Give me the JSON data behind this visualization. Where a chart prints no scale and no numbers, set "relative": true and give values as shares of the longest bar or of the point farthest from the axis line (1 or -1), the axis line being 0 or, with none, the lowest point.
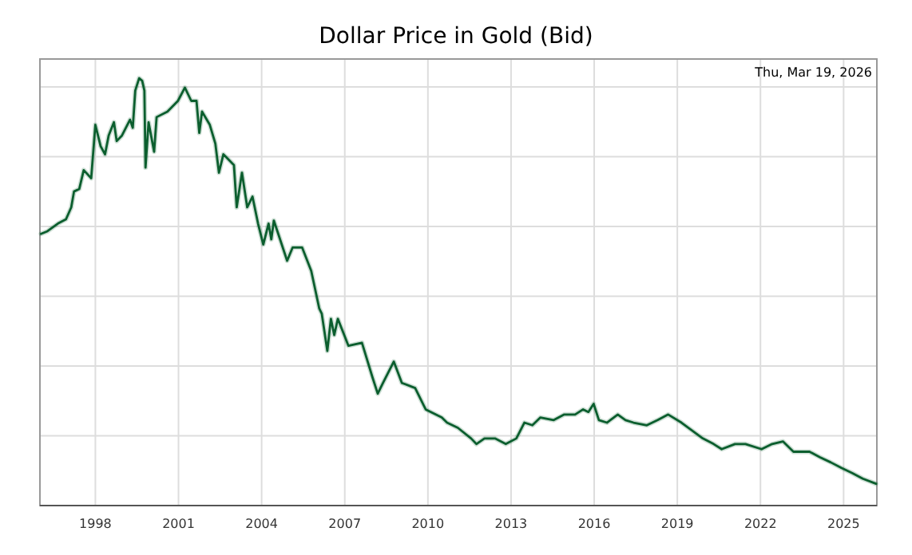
{
  "chart_data": {
    "type": "line",
    "title": "Dollar Price in Gold (Bid)",
    "relative": true,
    "grid": true,
    "marker": "none",
    "line_style": "solid",
    "annotations": [
      "Thu, Mar 19, 2026"
    ],
    "xlim": [
      1996,
      2026.2
    ],
    "xticks": [
      1998,
      2001,
      2004,
      2007,
      2010,
      2013,
      2016,
      2019,
      2022,
      2025
    ],
    "series": [
      {
        "color": "#0b5e2e",
        "x": [
          1996.04,
          1996.27,
          1996.65,
          1996.94,
          1997.13,
          1997.23,
          1997.42,
          1997.58,
          1997.85,
          1998.0,
          1998.19,
          1998.35,
          1998.48,
          1998.67,
          1998.77,
          1998.96,
          1999.25,
          1999.35,
          1999.44,
          1999.58,
          1999.69,
          1999.77,
          1999.81,
          1999.92,
          2000.12,
          2000.21,
          2000.6,
          2000.98,
          2001.23,
          2001.46,
          2001.65,
          2001.75,
          2001.85,
          2002.13,
          2002.33,
          2002.46,
          2002.62,
          2003.0,
          2003.1,
          2003.29,
          2003.48,
          2003.67,
          2003.87,
          2004.06,
          2004.25,
          2004.35,
          2004.44,
          2004.92,
          2005.12,
          2005.46,
          2005.79,
          2006.08,
          2006.17,
          2006.37,
          2006.5,
          2006.62,
          2006.75,
          2007.13,
          2007.62,
          2008.0,
          2008.19,
          2008.38,
          2008.77,
          2009.06,
          2009.54,
          2009.92,
          2010.5,
          2010.69,
          2011.08,
          2011.56,
          2011.75,
          2012.04,
          2012.42,
          2012.81,
          2013.19,
          2013.48,
          2013.77,
          2014.06,
          2014.54,
          2014.92,
          2015.31,
          2015.6,
          2015.79,
          2015.98,
          2016.17,
          2016.46,
          2016.85,
          2017.13,
          2017.42,
          2017.9,
          2018.29,
          2018.67,
          2019.15,
          2019.54,
          2019.92,
          2020.31,
          2020.6,
          2021.08,
          2021.46,
          2022.04,
          2022.42,
          2022.81,
          2023.19,
          2023.77,
          2024.15,
          2024.54,
          2024.92,
          2025.31,
          2025.69,
          2026.17
        ],
        "values": [
          0.636,
          0.642,
          0.66,
          0.67,
          0.698,
          0.735,
          0.741,
          0.785,
          0.766,
          0.891,
          0.841,
          0.822,
          0.866,
          0.897,
          0.853,
          0.866,
          0.903,
          0.884,
          0.971,
          1,
          0.994,
          0.971,
          0.791,
          0.897,
          0.828,
          0.909,
          0.922,
          0.947,
          0.978,
          0.947,
          0.947,
          0.872,
          0.922,
          0.891,
          0.847,
          0.779,
          0.822,
          0.797,
          0.698,
          0.779,
          0.698,
          0.723,
          0.66,
          0.611,
          0.66,
          0.623,
          0.667,
          0.573,
          0.604,
          0.604,
          0.549,
          0.461,
          0.449,
          0.362,
          0.437,
          0.399,
          0.437,
          0.374,
          0.381,
          0.3,
          0.262,
          0.287,
          0.337,
          0.287,
          0.275,
          0.225,
          0.206,
          0.194,
          0.182,
          0.157,
          0.144,
          0.157,
          0.157,
          0.144,
          0.157,
          0.194,
          0.188,
          0.206,
          0.2,
          0.213,
          0.213,
          0.225,
          0.219,
          0.238,
          0.2,
          0.194,
          0.213,
          0.2,
          0.194,
          0.188,
          0.2,
          0.213,
          0.194,
          0.175,
          0.157,
          0.144,
          0.132,
          0.144,
          0.144,
          0.132,
          0.144,
          0.15,
          0.126,
          0.126,
          0.113,
          0.101,
          0.088,
          0.076,
          0.063,
          0.051
        ]
      }
    ]
  }
}
